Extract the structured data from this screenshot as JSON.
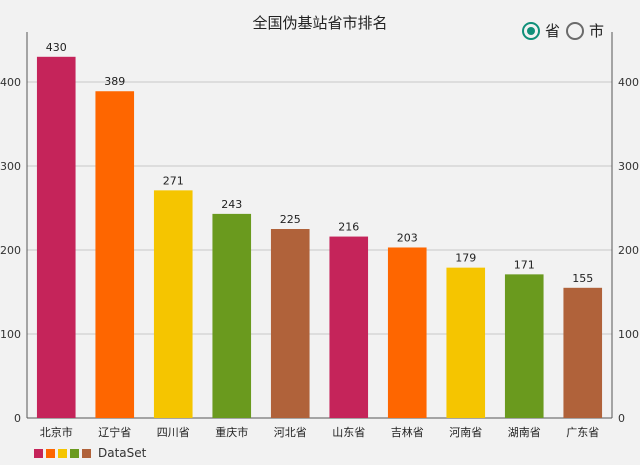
{
  "radio": {
    "options": [
      {
        "label": "省",
        "checked": true
      },
      {
        "label": "市",
        "checked": false
      }
    ]
  },
  "chart_data": {
    "type": "bar",
    "title": "全国伪基站省市排名",
    "categories": [
      "北京市",
      "辽宁省",
      "四川省",
      "重庆市",
      "河北省",
      "山东省",
      "吉林省",
      "河南省",
      "湖南省",
      "广东省"
    ],
    "values": [
      430,
      389,
      271,
      243,
      225,
      216,
      203,
      179,
      171,
      155
    ],
    "ylim": [
      0,
      450
    ],
    "yticks": [
      0,
      100,
      200,
      300,
      400
    ],
    "colors": [
      "#c5245a",
      "#fe6600",
      "#f5c500",
      "#6a9a1e",
      "#b0623a"
    ],
    "legend": {
      "label": "DataSet",
      "position": "bottom-left"
    },
    "grid": true
  }
}
